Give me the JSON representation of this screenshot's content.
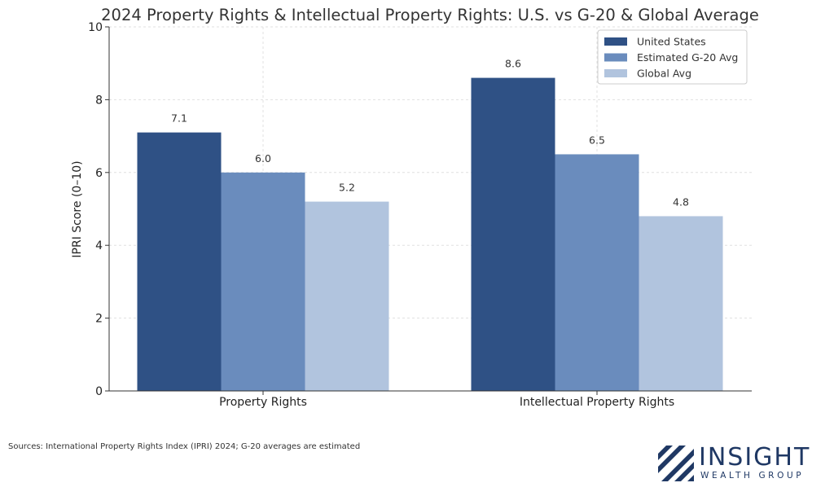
{
  "chart_data": {
    "type": "bar",
    "title": "2024 Property Rights & Intellectual Property Rights: U.S. vs G-20 & Global Average",
    "xlabel": "",
    "ylabel": "IPRI Score (0–10)",
    "ylim": [
      0,
      10
    ],
    "yticks": [
      0,
      2,
      4,
      6,
      8,
      10
    ],
    "categories": [
      "Property Rights",
      "Intellectual Property Rights"
    ],
    "series": [
      {
        "name": "United States",
        "values": [
          7.1,
          8.6
        ],
        "labels": [
          "7.1",
          "8.6"
        ],
        "color": "#2f5185"
      },
      {
        "name": "Estimated G-20 Avg",
        "values": [
          6.0,
          6.5
        ],
        "labels": [
          "6.0",
          "6.5"
        ],
        "color": "#6a8cbd"
      },
      {
        "name": "Global Avg",
        "values": [
          5.2,
          4.8
        ],
        "labels": [
          "5.2",
          "4.8"
        ],
        "color": "#b1c4de"
      }
    ],
    "grid": true,
    "legend_position": "top-right"
  },
  "source_note": "Sources: International Property Rights Index (IPRI) 2024; G-20 averages are estimated",
  "logo": {
    "main": "INSIGHT",
    "sub": "WEALTH GROUP",
    "color": "#1f3864"
  }
}
